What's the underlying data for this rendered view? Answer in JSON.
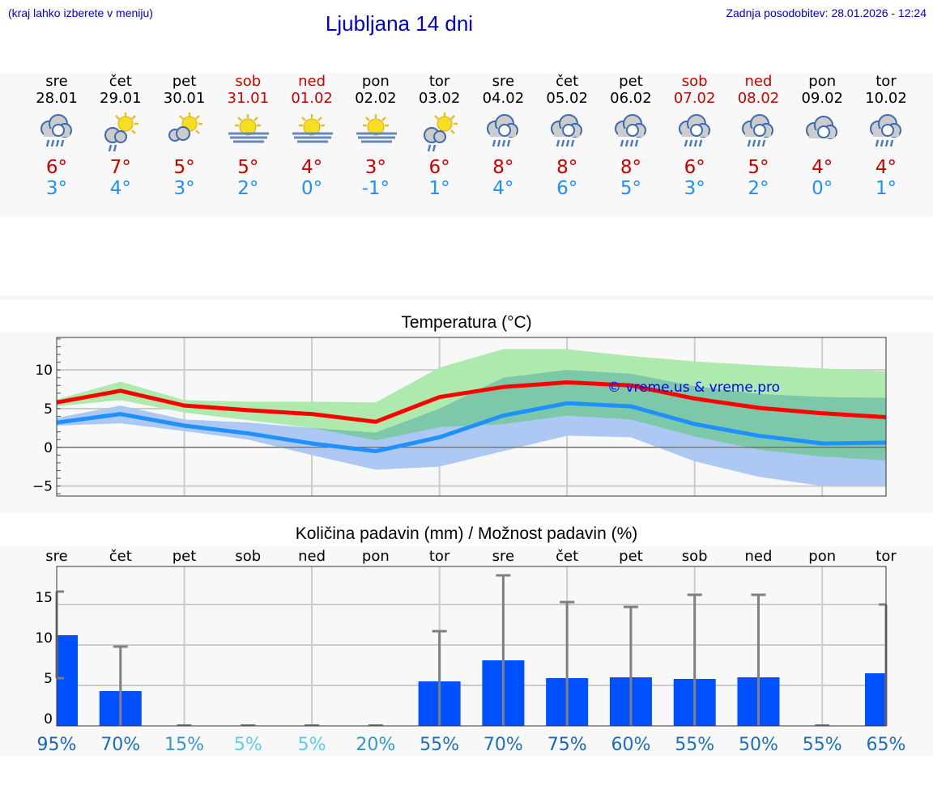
{
  "header": {
    "hint": "(kraj lahko izberete v meniju)",
    "title": "Ljubljana 14 dni",
    "updated": "Zadnja posodobitev: 28.01.2026 - 12:24"
  },
  "days": [
    {
      "name": "sre",
      "date": "28.01",
      "max": "6°",
      "min": "3°",
      "icon": "rain",
      "weekend": false
    },
    {
      "name": "čet",
      "date": "29.01",
      "max": "7°",
      "min": "4°",
      "icon": "sun-cloud-rain",
      "weekend": false
    },
    {
      "name": "pet",
      "date": "30.01",
      "max": "5°",
      "min": "3°",
      "icon": "sun-cloud",
      "weekend": false
    },
    {
      "name": "sob",
      "date": "31.01",
      "max": "5°",
      "min": "2°",
      "icon": "sun-fog",
      "weekend": true
    },
    {
      "name": "ned",
      "date": "01.02",
      "max": "4°",
      "min": "0°",
      "icon": "sun-fog",
      "weekend": true
    },
    {
      "name": "pon",
      "date": "02.02",
      "max": "3°",
      "min": "-1°",
      "icon": "sun-fog",
      "weekend": false
    },
    {
      "name": "tor",
      "date": "03.02",
      "max": "6°",
      "min": "1°",
      "icon": "sun-cloud-rain",
      "weekend": false
    },
    {
      "name": "sre",
      "date": "04.02",
      "max": "8°",
      "min": "4°",
      "icon": "rain",
      "weekend": false
    },
    {
      "name": "čet",
      "date": "05.02",
      "max": "8°",
      "min": "6°",
      "icon": "rain",
      "weekend": false
    },
    {
      "name": "pet",
      "date": "06.02",
      "max": "8°",
      "min": "5°",
      "icon": "rain",
      "weekend": false
    },
    {
      "name": "sob",
      "date": "07.02",
      "max": "6°",
      "min": "3°",
      "icon": "rain",
      "weekend": true
    },
    {
      "name": "ned",
      "date": "08.02",
      "max": "5°",
      "min": "2°",
      "icon": "rain",
      "weekend": true
    },
    {
      "name": "pon",
      "date": "09.02",
      "max": "4°",
      "min": "0°",
      "icon": "cloud",
      "weekend": false
    },
    {
      "name": "tor",
      "date": "10.02",
      "max": "4°",
      "min": "1°",
      "icon": "rain",
      "weekend": false
    }
  ],
  "colors": {
    "max": "#ff0000",
    "min": "#1e90ff",
    "max_band": "#aeeaae",
    "min_band": "#adc8f2",
    "overlap": "#7dc8a8",
    "bar": "#0050ff",
    "errbar": "#808080"
  },
  "chart_data": [
    {
      "type": "line",
      "title": "Temperatura (°C)",
      "ylim": [
        -6.3,
        14.2
      ],
      "yticks": [
        -5,
        0,
        5,
        10
      ],
      "yticklabels": [
        "−5",
        "0",
        "5",
        "10"
      ],
      "grid": true,
      "watermark": "© vreme.us & vreme.pro",
      "x": [
        "28.01",
        "29.01",
        "30.01",
        "31.01",
        "01.02",
        "02.02",
        "03.02",
        "04.02",
        "05.02",
        "06.02",
        "07.02",
        "08.02",
        "09.02",
        "10.02"
      ],
      "series": [
        {
          "role": "max",
          "values": [
            5.8,
            7.3,
            5.4,
            4.8,
            4.3,
            3.3,
            6.5,
            7.8,
            8.4,
            8.0,
            6.3,
            5.1,
            4.4,
            3.9
          ]
        },
        {
          "role": "min",
          "values": [
            3.2,
            4.3,
            2.8,
            1.8,
            0.5,
            -0.5,
            1.3,
            4.1,
            5.7,
            5.3,
            3.0,
            1.5,
            0.5,
            0.6
          ]
        }
      ],
      "bands": [
        {
          "role": "max-range",
          "upper": [
            6.2,
            8.5,
            6.1,
            5.9,
            5.9,
            5.8,
            10.3,
            12.7,
            12.7,
            11.8,
            11.1,
            10.6,
            10.2,
            9.8
          ],
          "lower": [
            5.3,
            6.1,
            4.5,
            3.5,
            2.5,
            0.9,
            2.6,
            3.0,
            4.1,
            3.6,
            1.4,
            -0.3,
            -1.2,
            -1.7
          ]
        },
        {
          "role": "min-range",
          "upper": [
            3.8,
            5.4,
            3.6,
            3.2,
            2.5,
            1.9,
            5.0,
            9.0,
            10.0,
            9.5,
            7.9,
            6.9,
            6.5,
            6.4
          ],
          "lower": [
            2.8,
            3.1,
            2.1,
            1.0,
            -1.0,
            -2.9,
            -2.5,
            -0.5,
            1.5,
            1.3,
            -1.8,
            -3.8,
            -5.0,
            -5.0
          ]
        }
      ]
    },
    {
      "type": "bar",
      "title": "Količina padavin (mm) / Možnost padavin (%)",
      "ylim": [
        0,
        19.7
      ],
      "yticks": [
        0,
        5,
        10,
        15
      ],
      "grid": true,
      "categories": [
        "sre",
        "čet",
        "pet",
        "sob",
        "ned",
        "pon",
        "tor",
        "sre",
        "čet",
        "pet",
        "sob",
        "ned",
        "pon",
        "tor"
      ],
      "values": [
        11.2,
        4.3,
        0,
        0,
        0,
        0,
        5.5,
        8.1,
        5.9,
        6.0,
        5.8,
        6.0,
        0,
        6.5
      ],
      "err_low": [
        5.9,
        0,
        0,
        0,
        0,
        0,
        0,
        0,
        0,
        0,
        0,
        0,
        0,
        0
      ],
      "err_high": [
        16.6,
        9.8,
        0,
        0,
        0,
        0,
        11.7,
        18.6,
        15.3,
        14.7,
        16.2,
        16.2,
        0,
        15.0
      ],
      "probability": [
        "95%",
        "70%",
        "15%",
        "5%",
        "5%",
        "20%",
        "55%",
        "70%",
        "75%",
        "60%",
        "55%",
        "50%",
        "55%",
        "65%"
      ],
      "probability_colors": [
        "#1565c0",
        "#1a6fc0",
        "#3399cc",
        "#55d0ee",
        "#55d0ee",
        "#3399cc",
        "#1a6fc0",
        "#1a6fc0",
        "#1565c0",
        "#1a6fc0",
        "#1a6fc0",
        "#1a6fc0",
        "#1a6fc0",
        "#1a6fc0"
      ]
    }
  ]
}
